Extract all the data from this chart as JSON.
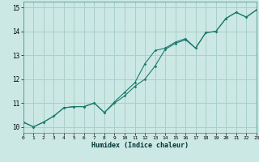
{
  "xlabel": "Humidex (Indice chaleur)",
  "bg_color": "#cce8e4",
  "grid_color": "#aacfca",
  "line_color": "#1a7a6e",
  "xlim": [
    0,
    23
  ],
  "ylim": [
    9.75,
    15.25
  ],
  "xticks": [
    0,
    1,
    2,
    3,
    4,
    5,
    6,
    7,
    8,
    9,
    10,
    11,
    12,
    13,
    14,
    15,
    16,
    17,
    18,
    19,
    20,
    21,
    22,
    23
  ],
  "yticks": [
    10,
    11,
    12,
    13,
    14,
    15
  ],
  "line1_x": [
    0,
    1,
    2,
    3,
    4,
    5,
    6,
    7,
    8,
    9,
    10,
    11,
    12,
    13,
    14,
    15,
    16,
    17,
    18,
    19,
    20,
    21,
    22,
    23
  ],
  "line1_y": [
    10.2,
    10.0,
    10.2,
    10.45,
    10.8,
    10.85,
    10.85,
    11.0,
    10.6,
    11.0,
    11.3,
    11.7,
    12.0,
    12.55,
    13.25,
    13.5,
    13.65,
    13.3,
    13.95,
    14.0,
    14.55,
    14.8,
    14.6,
    14.9
  ],
  "line2_x": [
    0,
    1,
    2,
    3,
    4,
    5,
    6,
    7,
    8,
    9,
    10,
    11,
    12,
    13,
    14,
    15,
    16,
    17,
    18,
    19,
    20,
    21,
    22,
    23
  ],
  "line2_y": [
    10.2,
    10.0,
    10.2,
    10.45,
    10.8,
    10.85,
    10.85,
    11.0,
    10.6,
    11.05,
    11.45,
    11.85,
    12.65,
    13.2,
    13.3,
    13.55,
    13.7,
    13.3,
    13.95,
    14.0,
    14.55,
    14.8,
    14.6,
    14.9
  ]
}
